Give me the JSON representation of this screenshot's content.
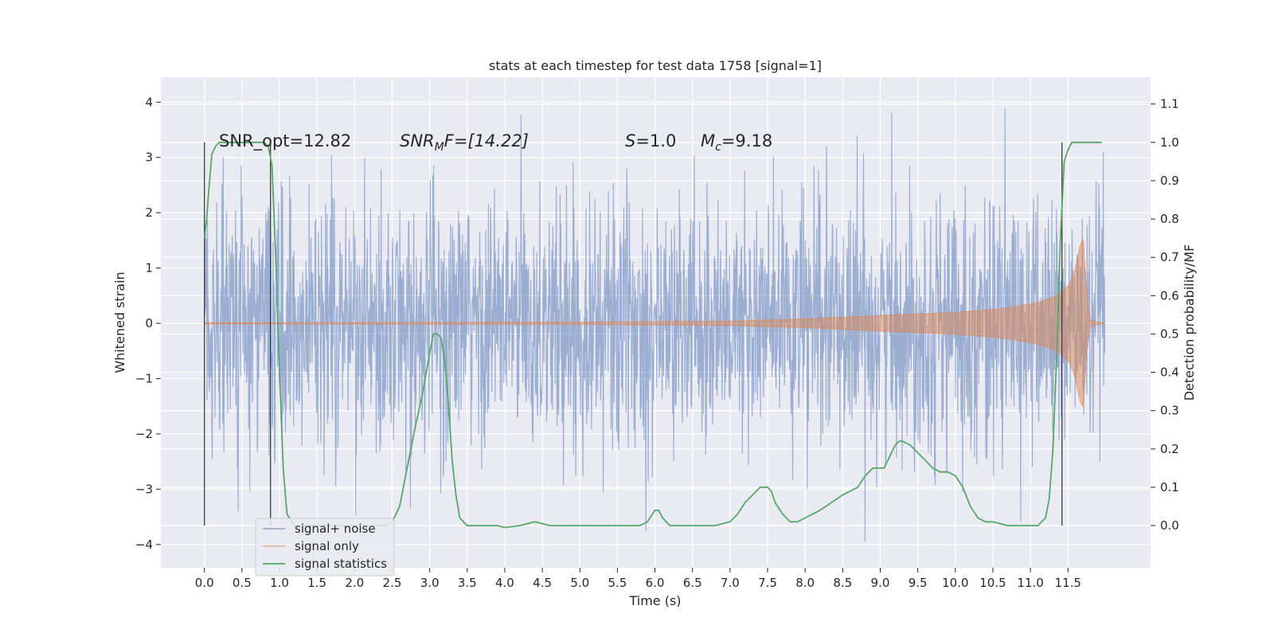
{
  "chart_data": {
    "type": "line",
    "title": "stats at each timestep for test data 1758 [signal=1]",
    "xlabel": "Time (s)",
    "ylabel": "Whitened strain",
    "y2label": "Detection probability/MF",
    "xlim": [
      -0.58,
      12.6
    ],
    "ylim": [
      -4.42,
      4.45
    ],
    "y2lim": [
      -0.11,
      1.17
    ],
    "xticks": [
      0.0,
      0.5,
      1.0,
      1.5,
      2.0,
      2.5,
      3.0,
      3.5,
      4.0,
      4.5,
      5.0,
      5.5,
      6.0,
      6.5,
      7.0,
      7.5,
      8.0,
      8.5,
      9.0,
      9.5,
      10.0,
      10.5,
      11.0,
      11.5
    ],
    "xtick_labels": [
      "0.0",
      "0.5",
      "1.0",
      "1.5",
      "2.0",
      "2.5",
      "3.0",
      "3.5",
      "4.0",
      "4.5",
      "5.0",
      "5.5",
      "6.0",
      "6.5",
      "7.0",
      "7.5",
      "8.0",
      "8.5",
      "9.0",
      "9.5",
      "10.0",
      "10.5",
      "11.0",
      "11.5"
    ],
    "yticks": [
      -4,
      -3,
      -2,
      -1,
      0,
      1,
      2,
      3,
      4
    ],
    "ytick_labels": [
      "−4",
      "−3",
      "−2",
      "−1",
      "0",
      "1",
      "2",
      "3",
      "4"
    ],
    "y2ticks": [
      0.0,
      0.1,
      0.2,
      0.3,
      0.4,
      0.5,
      0.6,
      0.7,
      0.8,
      0.9,
      1.0,
      1.1
    ],
    "y2tick_labels": [
      "0.0",
      "0.1",
      "0.2",
      "0.3",
      "0.4",
      "0.5",
      "0.6",
      "0.7",
      "0.8",
      "0.9",
      "1.0",
      "1.1"
    ],
    "grid": true,
    "legend_position": "lower-left",
    "annotations": {
      "snr_opt": "SNR_opt=12.82",
      "snr_mf_base": "SNR",
      "snr_mf_sub": "M",
      "snr_mf_rest": "F=[14.22]",
      "s_sym": "S",
      "s_rest": "=1.0",
      "mc_sym": "M",
      "mc_sub": "c",
      "mc_rest": "=9.18"
    },
    "vlines": [
      0.0,
      0.88,
      11.42
    ],
    "series": [
      {
        "name": "signal+ noise",
        "color": "#4c72b0",
        "x_range": [
          0.0,
          11.99
        ],
        "envelope_typical": [
          -1.9,
          1.9
        ],
        "min": -3.95,
        "max": 4.08
      },
      {
        "name": "signal only",
        "color": "#dd8452",
        "x": [
          0,
          5,
          6,
          7,
          8,
          8.5,
          9,
          9.5,
          10,
          10.5,
          10.8,
          11,
          11.2,
          11.3,
          11.4,
          11.5,
          11.55,
          11.6,
          11.65,
          11.7,
          11.75,
          11.8,
          11.99
        ],
        "amp": [
          0.01,
          0.02,
          0.03,
          0.04,
          0.08,
          0.11,
          0.14,
          0.17,
          0.2,
          0.25,
          0.3,
          0.35,
          0.42,
          0.47,
          0.55,
          0.67,
          0.8,
          1.0,
          1.35,
          1.55,
          0.55,
          0.05,
          0.0
        ]
      },
      {
        "name": "signal statistics",
        "color": "#55a868",
        "x": [
          0.0,
          0.03,
          0.06,
          0.1,
          0.15,
          0.2,
          0.3,
          0.5,
          0.7,
          0.8,
          0.85,
          0.9,
          0.95,
          1.0,
          1.05,
          1.1,
          1.2,
          1.5,
          2.0,
          2.4,
          2.5,
          2.6,
          2.7,
          2.8,
          2.9,
          3.0,
          3.05,
          3.1,
          3.15,
          3.2,
          3.25,
          3.3,
          3.35,
          3.4,
          3.5,
          3.7,
          3.9,
          4.0,
          4.2,
          4.4,
          4.6,
          4.8,
          5.0,
          5.2,
          5.5,
          5.8,
          5.9,
          6.0,
          6.05,
          6.1,
          6.2,
          6.3,
          6.5,
          6.8,
          7.0,
          7.1,
          7.2,
          7.3,
          7.4,
          7.5,
          7.55,
          7.6,
          7.7,
          7.8,
          7.9,
          8.0,
          8.2,
          8.5,
          8.6,
          8.7,
          8.8,
          8.9,
          9.0,
          9.05,
          9.1,
          9.15,
          9.2,
          9.25,
          9.3,
          9.4,
          9.5,
          9.6,
          9.7,
          9.8,
          9.9,
          10.0,
          10.1,
          10.2,
          10.3,
          10.4,
          10.5,
          10.7,
          10.9,
          11.0,
          11.1,
          11.2,
          11.25,
          11.3,
          11.35,
          11.4,
          11.45,
          11.5,
          11.55,
          11.6,
          11.7,
          11.8,
          11.95
        ],
        "y": [
          0.75,
          0.8,
          0.88,
          0.97,
          0.99,
          1.0,
          1.0,
          1.0,
          1.0,
          1.0,
          0.99,
          0.94,
          0.7,
          0.4,
          0.15,
          0.03,
          0.0,
          0.0,
          0.0,
          0.0,
          0.01,
          0.05,
          0.15,
          0.25,
          0.34,
          0.45,
          0.5,
          0.5,
          0.49,
          0.43,
          0.32,
          0.17,
          0.08,
          0.02,
          0.0,
          0.0,
          0.0,
          -0.005,
          0.0,
          0.01,
          0.0,
          0.0,
          0.0,
          0.0,
          0.0,
          0.0,
          0.01,
          0.04,
          0.04,
          0.02,
          0.0,
          0.0,
          0.0,
          0.0,
          0.01,
          0.03,
          0.06,
          0.08,
          0.1,
          0.1,
          0.09,
          0.06,
          0.03,
          0.01,
          0.01,
          0.02,
          0.04,
          0.08,
          0.09,
          0.1,
          0.13,
          0.15,
          0.15,
          0.15,
          0.17,
          0.19,
          0.21,
          0.22,
          0.22,
          0.21,
          0.19,
          0.17,
          0.15,
          0.14,
          0.14,
          0.13,
          0.1,
          0.05,
          0.02,
          0.01,
          0.01,
          0.0,
          0.0,
          0.0,
          0.0,
          0.02,
          0.07,
          0.2,
          0.45,
          0.75,
          0.95,
          0.98,
          1.0,
          1.0,
          1.0,
          1.0,
          1.0
        ]
      }
    ]
  }
}
